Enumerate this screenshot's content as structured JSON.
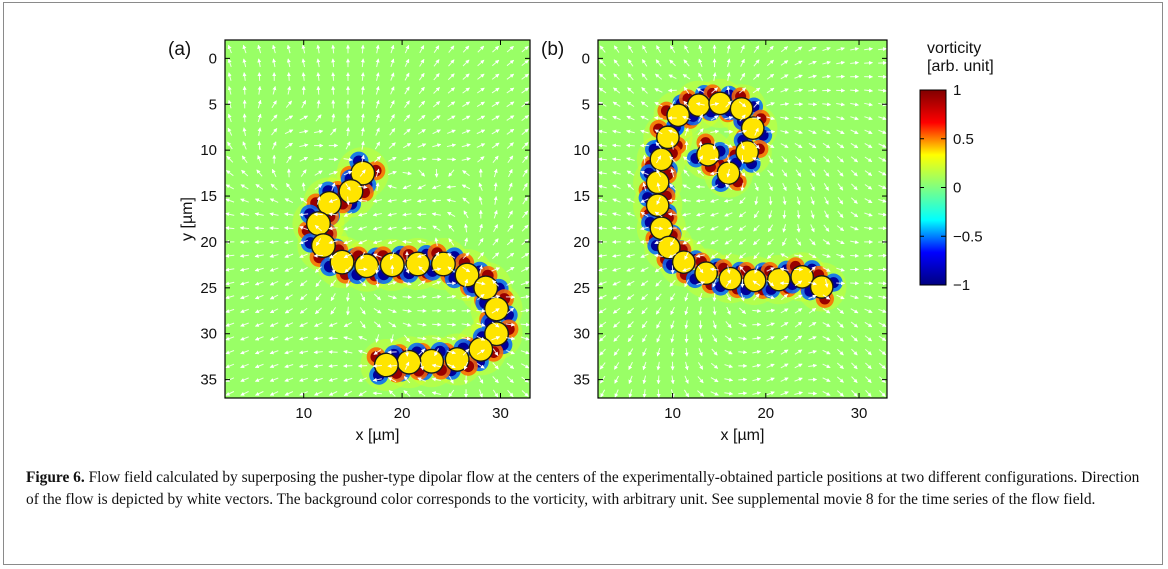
{
  "chart_data": [
    {
      "type": "heatmap",
      "panel_label": "(a)",
      "xlabel": "x [µm]",
      "ylabel": "y [µm]",
      "xlim": [
        2,
        33
      ],
      "ylim": [
        37,
        -2
      ],
      "xticks": [
        10,
        20,
        30
      ],
      "yticks": [
        0,
        5,
        10,
        15,
        20,
        25,
        30,
        35
      ],
      "value": "vorticity",
      "particles": [
        [
          16.0,
          12.5
        ],
        [
          14.8,
          14.5
        ],
        [
          12.6,
          15.8
        ],
        [
          11.5,
          18.0
        ],
        [
          12.0,
          20.4
        ],
        [
          13.9,
          22.2
        ],
        [
          16.4,
          22.6
        ],
        [
          19.0,
          22.5
        ],
        [
          21.6,
          22.4
        ],
        [
          24.2,
          22.4
        ],
        [
          26.6,
          23.6
        ],
        [
          28.5,
          25.0
        ],
        [
          29.6,
          27.3
        ],
        [
          29.6,
          30.0
        ],
        [
          28.0,
          31.7
        ],
        [
          25.6,
          32.8
        ],
        [
          23.0,
          33.0
        ],
        [
          20.7,
          33.1
        ],
        [
          18.4,
          33.4
        ]
      ]
    },
    {
      "type": "heatmap",
      "panel_label": "(b)",
      "xlabel": "x [µm]",
      "ylabel": "",
      "xlim": [
        2,
        33
      ],
      "ylim": [
        37,
        -2
      ],
      "xticks": [
        10,
        20,
        30
      ],
      "yticks": [
        0,
        5,
        10,
        15,
        20,
        25,
        30,
        35
      ],
      "value": "vorticity",
      "particles": [
        [
          10.6,
          6.2
        ],
        [
          12.8,
          5.1
        ],
        [
          15.1,
          4.9
        ],
        [
          17.4,
          5.5
        ],
        [
          18.6,
          7.6
        ],
        [
          18.0,
          10.2
        ],
        [
          16.0,
          12.5
        ],
        [
          13.8,
          10.5
        ],
        [
          9.5,
          8.6
        ],
        [
          8.8,
          11.0
        ],
        [
          8.4,
          13.5
        ],
        [
          8.4,
          16.0
        ],
        [
          8.8,
          18.5
        ],
        [
          9.6,
          20.6
        ],
        [
          11.2,
          22.2
        ],
        [
          13.6,
          23.4
        ],
        [
          16.2,
          24.0
        ],
        [
          18.8,
          24.2
        ],
        [
          21.4,
          24.1
        ],
        [
          23.9,
          23.8
        ],
        [
          26.0,
          24.9
        ]
      ]
    }
  ],
  "colorbar": {
    "title_line1": "vorticity",
    "title_line2": "[arb. unit]",
    "range": [
      -1,
      1
    ],
    "ticks": [
      1,
      0.5,
      0,
      -0.5,
      -1
    ],
    "tick_labels": [
      "1",
      "0.5",
      "0",
      "−0.5",
      "−1"
    ],
    "colors": [
      "#000080",
      "#0000ff",
      "#00ffff",
      "#80ff80",
      "#ffff00",
      "#ff0000",
      "#800000"
    ]
  },
  "caption": {
    "label": "Figure 6.",
    "text": " Flow field calculated by superposing the pusher-type dipolar flow at the centers of the experimentally-obtained particle positions at two different configurations. Direction of the flow is depicted by white vectors. The background color corresponds to the vorticity, with arbitrary unit. See supplemental movie 8 for the time series of the flow field."
  }
}
